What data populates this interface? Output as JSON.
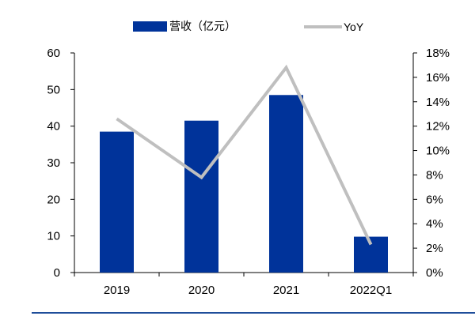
{
  "chart_data": {
    "type": "bar",
    "categories": [
      "2019",
      "2020",
      "2021",
      "2022Q1"
    ],
    "series": [
      {
        "name": "营收（亿元）",
        "type": "bar",
        "axis": "left",
        "color": "#00339a",
        "values": [
          38.5,
          41.5,
          48.5,
          9.8
        ]
      },
      {
        "name": "YoY",
        "type": "line",
        "axis": "right",
        "color": "#bfbfbf",
        "values": [
          12.6,
          7.8,
          16.8,
          2.3
        ]
      }
    ],
    "ylim": [
      0,
      60
    ],
    "yticks": [
      "0",
      "10",
      "20",
      "30",
      "40",
      "50",
      "60"
    ],
    "y2lim": [
      0,
      18
    ],
    "y2ticks": [
      "0%",
      "2%",
      "4%",
      "6%",
      "8%",
      "10%",
      "12%",
      "14%",
      "16%",
      "18%"
    ],
    "grid": false,
    "legend_position": "top-center",
    "footer_line_color": "#1f4e9a"
  }
}
